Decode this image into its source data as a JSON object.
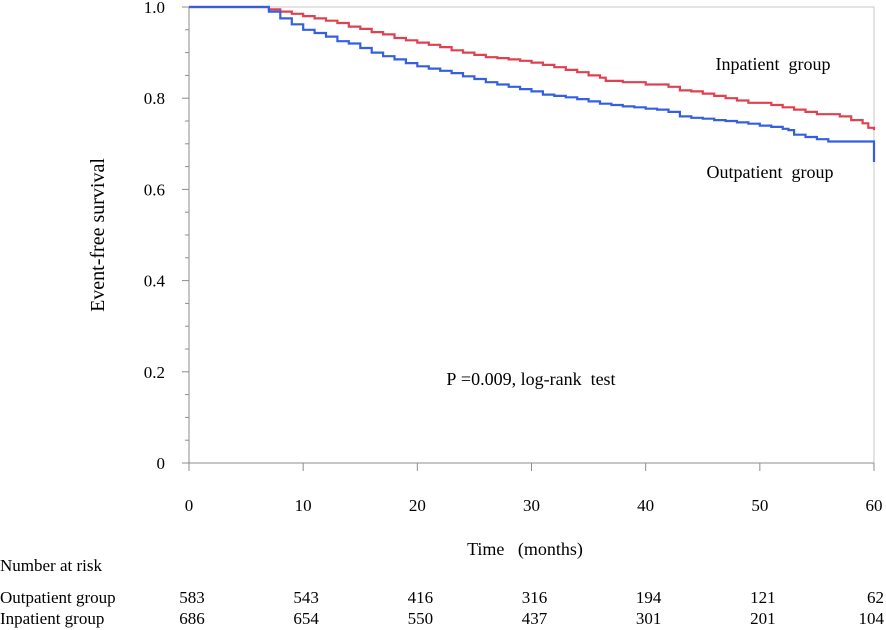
{
  "chart_data": {
    "type": "line",
    "title": "",
    "xlabel": "Time   (months)",
    "ylabel": "Event-free survival",
    "xlim": [
      0,
      60
    ],
    "ylim": [
      0,
      1.0
    ],
    "x_ticks": [
      0,
      10,
      20,
      30,
      40,
      50,
      60
    ],
    "x_tick_labels": [
      "0",
      "10",
      "20",
      "30",
      "40",
      "50",
      "60"
    ],
    "y_ticks": [
      0,
      0.2,
      0.4,
      0.6,
      0.8,
      1.0
    ],
    "y_tick_labels": [
      "0",
      "0.2",
      "0.4",
      "0.6",
      "0.8",
      "1.0"
    ],
    "grid": false,
    "annotation": "P =0.009, log-rank  test",
    "series": [
      {
        "name": "Inpatient  group",
        "color": "#e0404f",
        "points": [
          [
            0,
            1.0
          ],
          [
            6,
            1.0
          ],
          [
            7,
            0.995
          ],
          [
            8,
            0.99
          ],
          [
            9,
            0.985
          ],
          [
            10,
            0.98
          ],
          [
            11,
            0.975
          ],
          [
            12,
            0.97
          ],
          [
            13,
            0.965
          ],
          [
            14,
            0.957
          ],
          [
            15,
            0.952
          ],
          [
            16,
            0.945
          ],
          [
            17,
            0.94
          ],
          [
            18,
            0.932
          ],
          [
            19,
            0.927
          ],
          [
            20,
            0.922
          ],
          [
            21,
            0.917
          ],
          [
            22,
            0.912
          ],
          [
            23,
            0.905
          ],
          [
            24,
            0.9
          ],
          [
            25,
            0.895
          ],
          [
            26,
            0.89
          ],
          [
            27,
            0.888
          ],
          [
            28,
            0.885
          ],
          [
            29,
            0.882
          ],
          [
            30,
            0.878
          ],
          [
            31,
            0.873
          ],
          [
            32,
            0.868
          ],
          [
            33,
            0.862
          ],
          [
            34,
            0.857
          ],
          [
            35,
            0.85
          ],
          [
            36,
            0.845
          ],
          [
            36.5,
            0.838
          ],
          [
            38,
            0.835
          ],
          [
            40,
            0.83
          ],
          [
            42,
            0.825
          ],
          [
            43,
            0.817
          ],
          [
            44,
            0.815
          ],
          [
            45,
            0.81
          ],
          [
            46,
            0.805
          ],
          [
            47,
            0.8
          ],
          [
            48,
            0.795
          ],
          [
            49,
            0.79
          ],
          [
            51,
            0.785
          ],
          [
            52,
            0.78
          ],
          [
            53,
            0.775
          ],
          [
            54,
            0.77
          ],
          [
            55,
            0.765
          ],
          [
            57,
            0.76
          ],
          [
            58,
            0.752
          ],
          [
            59,
            0.745
          ],
          [
            59.5,
            0.735
          ],
          [
            60,
            0.73
          ]
        ]
      },
      {
        "name": "Outpatient  group",
        "color": "#3460e0",
        "points": [
          [
            0,
            1.0
          ],
          [
            6,
            1.0
          ],
          [
            7,
            0.99
          ],
          [
            8,
            0.975
          ],
          [
            9,
            0.962
          ],
          [
            10,
            0.95
          ],
          [
            11,
            0.943
          ],
          [
            12,
            0.935
          ],
          [
            13,
            0.925
          ],
          [
            14,
            0.92
          ],
          [
            15,
            0.91
          ],
          [
            16,
            0.9
          ],
          [
            17,
            0.892
          ],
          [
            18,
            0.885
          ],
          [
            19,
            0.877
          ],
          [
            20,
            0.87
          ],
          [
            21,
            0.865
          ],
          [
            22,
            0.86
          ],
          [
            23,
            0.855
          ],
          [
            24,
            0.848
          ],
          [
            25,
            0.842
          ],
          [
            26,
            0.835
          ],
          [
            27,
            0.83
          ],
          [
            28,
            0.825
          ],
          [
            29,
            0.82
          ],
          [
            30,
            0.815
          ],
          [
            31,
            0.808
          ],
          [
            32,
            0.805
          ],
          [
            33,
            0.802
          ],
          [
            34,
            0.798
          ],
          [
            35,
            0.793
          ],
          [
            36,
            0.788
          ],
          [
            37,
            0.785
          ],
          [
            38,
            0.782
          ],
          [
            39,
            0.78
          ],
          [
            40,
            0.777
          ],
          [
            41,
            0.775
          ],
          [
            42,
            0.77
          ],
          [
            43,
            0.76
          ],
          [
            44,
            0.757
          ],
          [
            45,
            0.755
          ],
          [
            46,
            0.752
          ],
          [
            47,
            0.75
          ],
          [
            48,
            0.747
          ],
          [
            49,
            0.744
          ],
          [
            50,
            0.74
          ],
          [
            51,
            0.737
          ],
          [
            52,
            0.733
          ],
          [
            52.5,
            0.73
          ],
          [
            53,
            0.72
          ],
          [
            54,
            0.715
          ],
          [
            55,
            0.71
          ],
          [
            56,
            0.705
          ],
          [
            60,
            0.705
          ],
          [
            60,
            0.66
          ]
        ]
      }
    ],
    "risk_table": {
      "title": "Number at risk",
      "rows": [
        {
          "label": "Outpatient group",
          "values": [
            "583",
            "543",
            "416",
            "316",
            "194",
            "121",
            "62"
          ]
        },
        {
          "label": "Inpatient group",
          "values": [
            "686",
            "654",
            "550",
            "437",
            "301",
            "201",
            "104"
          ]
        }
      ]
    }
  }
}
